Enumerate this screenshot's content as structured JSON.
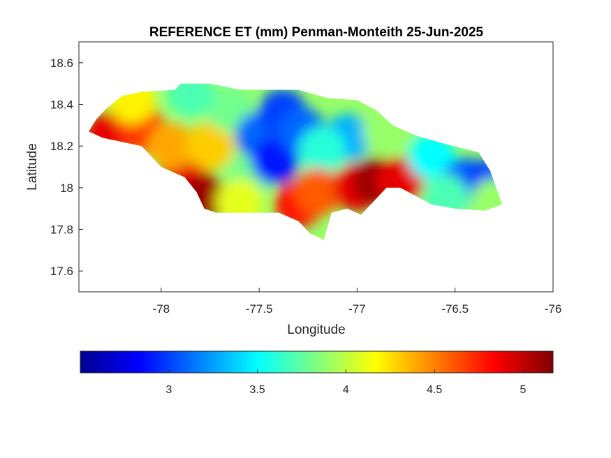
{
  "chart_data": {
    "type": "heatmap",
    "title": "REFERENCE ET (mm) Penman-Monteith 25-Jun-2025",
    "xlabel": "Longitude",
    "ylabel": "Latitude",
    "xlim": [
      -78.42,
      -76.0
    ],
    "ylim": [
      17.5,
      18.7
    ],
    "xticks": [
      -78,
      -77.5,
      -77,
      -76.5,
      -76
    ],
    "xtick_labels": [
      "-78",
      "-77.5",
      "-77",
      "-76.5",
      "-76"
    ],
    "yticks": [
      17.6,
      17.8,
      18,
      18.2,
      18.4,
      18.6
    ],
    "ytick_labels": [
      "17.6",
      "17.8",
      "18",
      "18.2",
      "18.4",
      "18.6"
    ],
    "grid": false,
    "colormap": "jet",
    "colorbar": {
      "location": "southoutside",
      "range": [
        2.5,
        5.17
      ],
      "ticks": [
        3,
        3.5,
        4,
        4.5,
        5
      ],
      "tick_labels": [
        "3",
        "3.5",
        "4",
        "4.5",
        "5"
      ]
    },
    "region_outline_lonlat": [
      [
        -78.37,
        18.27
      ],
      [
        -78.33,
        18.33
      ],
      [
        -78.28,
        18.38
      ],
      [
        -78.2,
        18.44
      ],
      [
        -78.1,
        18.46
      ],
      [
        -77.93,
        18.47
      ],
      [
        -77.9,
        18.5
      ],
      [
        -77.75,
        18.5
      ],
      [
        -77.6,
        18.47
      ],
      [
        -77.45,
        18.47
      ],
      [
        -77.3,
        18.47
      ],
      [
        -77.15,
        18.43
      ],
      [
        -77.0,
        18.42
      ],
      [
        -76.9,
        18.37
      ],
      [
        -76.82,
        18.3
      ],
      [
        -76.7,
        18.25
      ],
      [
        -76.55,
        18.21
      ],
      [
        -76.38,
        18.17
      ],
      [
        -76.32,
        18.08
      ],
      [
        -76.26,
        17.92
      ],
      [
        -76.35,
        17.89
      ],
      [
        -76.5,
        17.9
      ],
      [
        -76.62,
        17.92
      ],
      [
        -76.7,
        17.96
      ],
      [
        -76.78,
        18.0
      ],
      [
        -76.85,
        18.0
      ],
      [
        -76.92,
        17.93
      ],
      [
        -76.98,
        17.87
      ],
      [
        -77.05,
        17.9
      ],
      [
        -77.13,
        17.88
      ],
      [
        -77.17,
        17.75
      ],
      [
        -77.24,
        17.78
      ],
      [
        -77.3,
        17.84
      ],
      [
        -77.4,
        17.88
      ],
      [
        -77.5,
        17.88
      ],
      [
        -77.6,
        17.88
      ],
      [
        -77.72,
        17.88
      ],
      [
        -77.78,
        17.9
      ],
      [
        -77.82,
        17.98
      ],
      [
        -77.88,
        18.05
      ],
      [
        -78.0,
        18.1
      ],
      [
        -78.1,
        18.2
      ],
      [
        -78.2,
        18.22
      ],
      [
        -78.3,
        18.24
      ]
    ],
    "value_hotspots": [
      {
        "lon": -78.27,
        "lat": 18.25,
        "value": 4.9
      },
      {
        "lon": -78.1,
        "lat": 18.28,
        "value": 4.7
      },
      {
        "lon": -77.88,
        "lat": 18.08,
        "value": 4.9
      },
      {
        "lon": -77.78,
        "lat": 17.95,
        "value": 5.1
      },
      {
        "lon": -78.15,
        "lat": 18.42,
        "value": 4.2
      },
      {
        "lon": -77.95,
        "lat": 18.2,
        "value": 4.4
      },
      {
        "lon": -77.75,
        "lat": 18.2,
        "value": 4.3
      },
      {
        "lon": -77.65,
        "lat": 18.38,
        "value": 3.8
      },
      {
        "lon": -77.55,
        "lat": 18.05,
        "value": 3.8
      },
      {
        "lon": -77.5,
        "lat": 18.25,
        "value": 3.1
      },
      {
        "lon": -77.42,
        "lat": 18.13,
        "value": 2.9
      },
      {
        "lon": -77.38,
        "lat": 18.36,
        "value": 3.0
      },
      {
        "lon": -77.28,
        "lat": 18.27,
        "value": 3.1
      },
      {
        "lon": -77.05,
        "lat": 18.24,
        "value": 3.3
      },
      {
        "lon": -77.18,
        "lat": 18.18,
        "value": 3.6
      },
      {
        "lon": -77.3,
        "lat": 17.92,
        "value": 4.8
      },
      {
        "lon": -77.2,
        "lat": 17.98,
        "value": 4.6
      },
      {
        "lon": -77.0,
        "lat": 18.0,
        "value": 4.9
      },
      {
        "lon": -76.9,
        "lat": 18.03,
        "value": 5.1
      },
      {
        "lon": -76.78,
        "lat": 18.03,
        "value": 4.9
      },
      {
        "lon": -76.85,
        "lat": 18.27,
        "value": 3.9
      },
      {
        "lon": -76.62,
        "lat": 18.15,
        "value": 3.5
      },
      {
        "lon": -76.45,
        "lat": 18.03,
        "value": 3.1
      },
      {
        "lon": -76.35,
        "lat": 18.02,
        "value": 3.0
      },
      {
        "lon": -76.55,
        "lat": 17.95,
        "value": 3.7
      },
      {
        "lon": -76.3,
        "lat": 17.93,
        "value": 3.9
      },
      {
        "lon": -77.6,
        "lat": 17.93,
        "value": 4.1
      },
      {
        "lon": -77.85,
        "lat": 18.45,
        "value": 3.7
      }
    ]
  }
}
